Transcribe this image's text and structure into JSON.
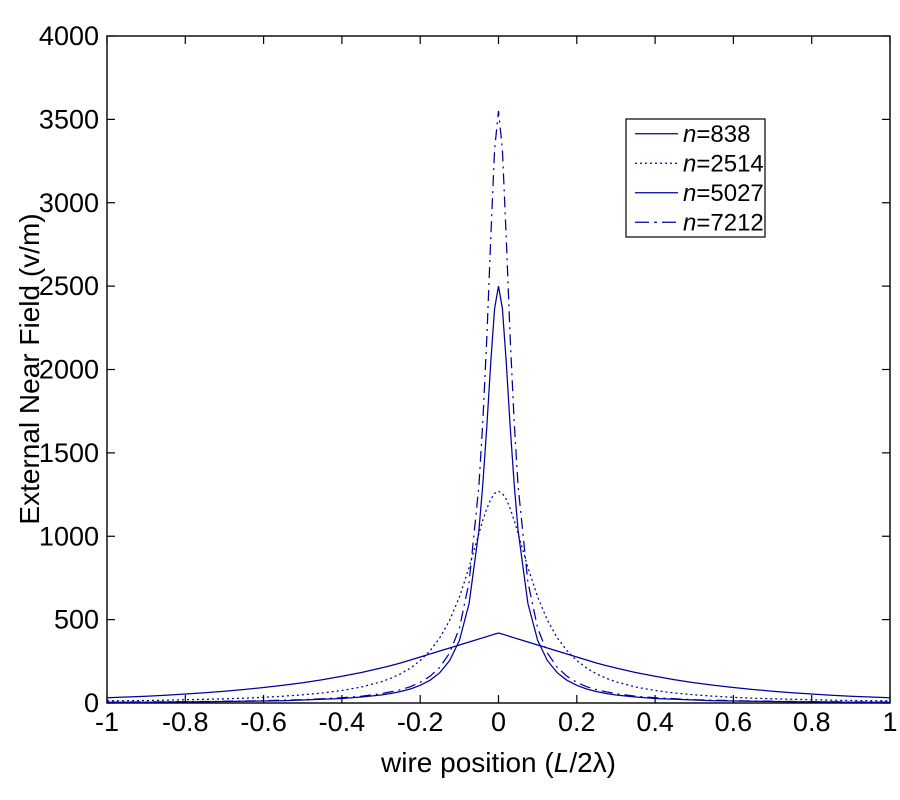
{
  "figure": {
    "background": "#ffffff",
    "axis_color": "#000000",
    "text_color": "#000000",
    "line_color": "#00009e"
  },
  "chart_data": {
    "type": "line",
    "title": "",
    "xlabel": "wire position (L/2λ)",
    "xlabel_parts": {
      "pre": "wire position (",
      "var": "L",
      "post": "/2λ)"
    },
    "ylabel": "External Near Field (v/m)",
    "xlim": [
      -1,
      1
    ],
    "ylim": [
      0,
      4000
    ],
    "grid": false,
    "legend_position": "upper-right-inside",
    "xticks": [
      -1,
      -0.8,
      -0.6,
      -0.4,
      -0.2,
      0,
      0.2,
      0.4,
      0.6,
      0.8,
      1
    ],
    "xtick_labels": [
      "-1",
      "-0.8",
      "-0.6",
      "-0.4",
      "-0.2",
      "0",
      "0.2",
      "0.4",
      "0.6",
      "0.8",
      "1"
    ],
    "yticks": [
      0,
      500,
      1000,
      1500,
      2000,
      2500,
      3000,
      3500,
      4000
    ],
    "ytick_labels": [
      "0",
      "500",
      "1000",
      "1500",
      "2000",
      "2500",
      "3000",
      "3500",
      "4000"
    ],
    "x": [
      -1,
      -0.95,
      -0.9,
      -0.85,
      -0.8,
      -0.75,
      -0.7,
      -0.65,
      -0.6,
      -0.55,
      -0.5,
      -0.45,
      -0.4,
      -0.35,
      -0.3,
      -0.275,
      -0.25,
      -0.225,
      -0.2,
      -0.175,
      -0.15,
      -0.125,
      -0.1,
      -0.075,
      -0.05,
      -0.04,
      -0.03,
      -0.02,
      -0.01,
      0,
      0.01,
      0.02,
      0.03,
      0.04,
      0.05,
      0.075,
      0.1,
      0.125,
      0.15,
      0.175,
      0.2,
      0.225,
      0.25,
      0.275,
      0.3,
      0.35,
      0.4,
      0.45,
      0.5,
      0.55,
      0.6,
      0.65,
      0.7,
      0.75,
      0.8,
      0.85,
      0.9,
      0.95,
      1
    ],
    "series": [
      {
        "name": "n=838",
        "label_var": "n",
        "label_rest": "=838",
        "style": "solid",
        "peak": 420,
        "values": [
          32,
          36,
          41,
          47,
          54,
          62,
          71,
          81,
          93,
          107,
          122,
          140,
          160,
          183,
          210,
          224,
          240,
          258,
          276,
          294,
          312,
          330,
          348,
          366,
          384,
          391,
          398,
          406,
          413,
          420,
          413,
          406,
          398,
          391,
          384,
          366,
          348,
          330,
          312,
          294,
          276,
          258,
          240,
          224,
          210,
          183,
          160,
          140,
          122,
          107,
          93,
          81,
          71,
          62,
          54,
          47,
          41,
          36,
          32
        ]
      },
      {
        "name": "n=2514",
        "label_var": "n",
        "label_rest": "=2514",
        "style": "dotted",
        "peak": 1270,
        "values": [
          13,
          14,
          15,
          17,
          20,
          22,
          25,
          29,
          34,
          41,
          49,
          60,
          75,
          96,
          127,
          148,
          175,
          209,
          254,
          313,
          391,
          496,
          635,
          813,
          1016,
          1095,
          1165,
          1221,
          1257,
          1270,
          1257,
          1221,
          1165,
          1095,
          1016,
          813,
          635,
          496,
          391,
          313,
          254,
          209,
          175,
          148,
          127,
          96,
          75,
          60,
          49,
          41,
          34,
          29,
          25,
          22,
          20,
          17,
          15,
          14,
          13
        ]
      },
      {
        "name": "n=5027",
        "label_var": "n",
        "label_rest": "=5027",
        "style": "solid",
        "peak": 2500,
        "values": [
          4,
          5,
          5,
          6,
          7,
          8,
          9,
          10,
          12,
          14,
          18,
          22,
          27,
          36,
          48,
          57,
          69,
          84,
          106,
          136,
          182,
          254,
          375,
          597,
          1034,
          1311,
          1656,
          2038,
          2366,
          2500,
          2366,
          2038,
          1656,
          1311,
          1034,
          597,
          375,
          254,
          182,
          136,
          106,
          84,
          69,
          57,
          48,
          36,
          27,
          22,
          18,
          14,
          12,
          10,
          9,
          8,
          7,
          6,
          5,
          5,
          4
        ]
      },
      {
        "name": "n=7212",
        "label_var": "n",
        "label_rest": "=7212",
        "style": "dashdot",
        "peak": 3550,
        "values": [
          5,
          6,
          6,
          7,
          8,
          9,
          10,
          12,
          14,
          17,
          20,
          25,
          32,
          41,
          56,
          67,
          80,
          98,
          124,
          160,
          214,
          300,
          448,
          725,
          1300,
          1684,
          2187,
          2780,
          3320,
          3550,
          3320,
          2780,
          2187,
          1684,
          1300,
          725,
          448,
          300,
          214,
          160,
          124,
          98,
          80,
          67,
          56,
          41,
          32,
          25,
          20,
          17,
          14,
          12,
          10,
          9,
          8,
          7,
          6,
          6,
          5
        ]
      }
    ]
  }
}
